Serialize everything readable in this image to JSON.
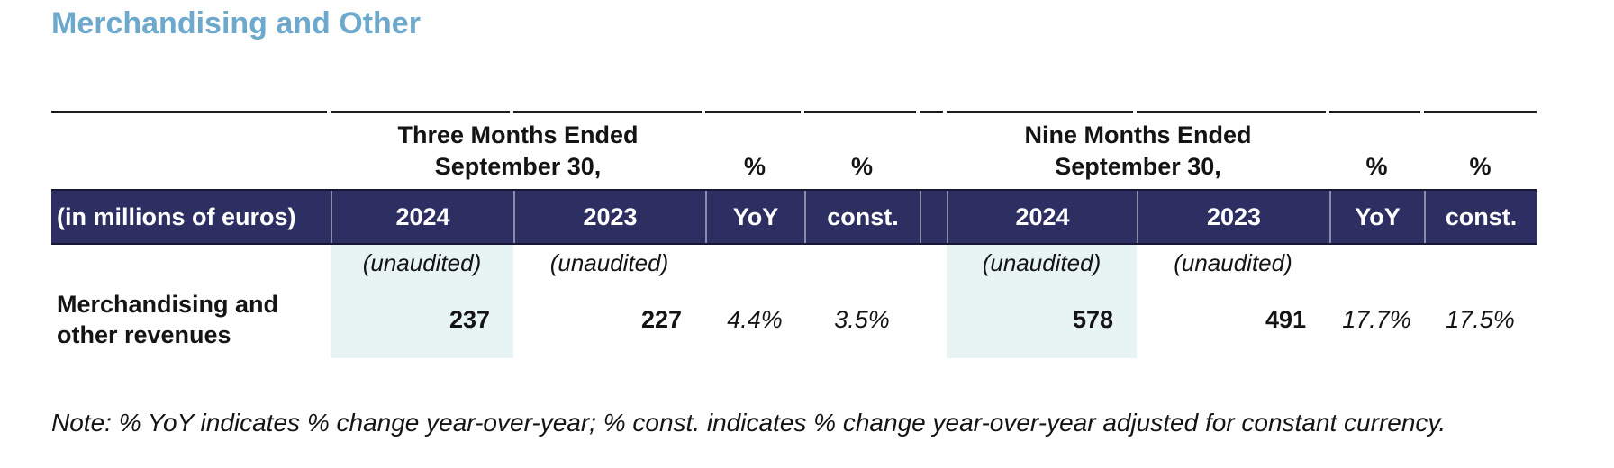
{
  "title": "Merchandising and Other",
  "colors": {
    "navy": "#2d2f63",
    "highlight": "#e8f4f3",
    "title_blue": "#6da9cd",
    "rule": "#1b1b1b"
  },
  "table": {
    "col_groups": [
      {
        "line1": "Three Months Ended",
        "line2": "September 30,",
        "pct_yoy": "%",
        "pct_const": "%"
      },
      {
        "line1": "Nine Months Ended",
        "line2": "September 30,",
        "pct_yoy": "%",
        "pct_const": "%"
      }
    ],
    "header_row": {
      "label": "(in millions of euros)",
      "cells": [
        "2024",
        "2023",
        "YoY",
        "const.",
        "2024",
        "2023",
        "YoY",
        "const."
      ]
    },
    "unaudited_label": "(unaudited)",
    "data_rows": [
      {
        "label": "Merchandising and other revenues",
        "values": [
          "237",
          "227",
          "4.4%",
          "3.5%",
          "578",
          "491",
          "17.7%",
          "17.5%"
        ]
      }
    ]
  },
  "note": "Note: % YoY indicates % change year-over-year; % const. indicates % change year-over-year adjusted for constant currency."
}
